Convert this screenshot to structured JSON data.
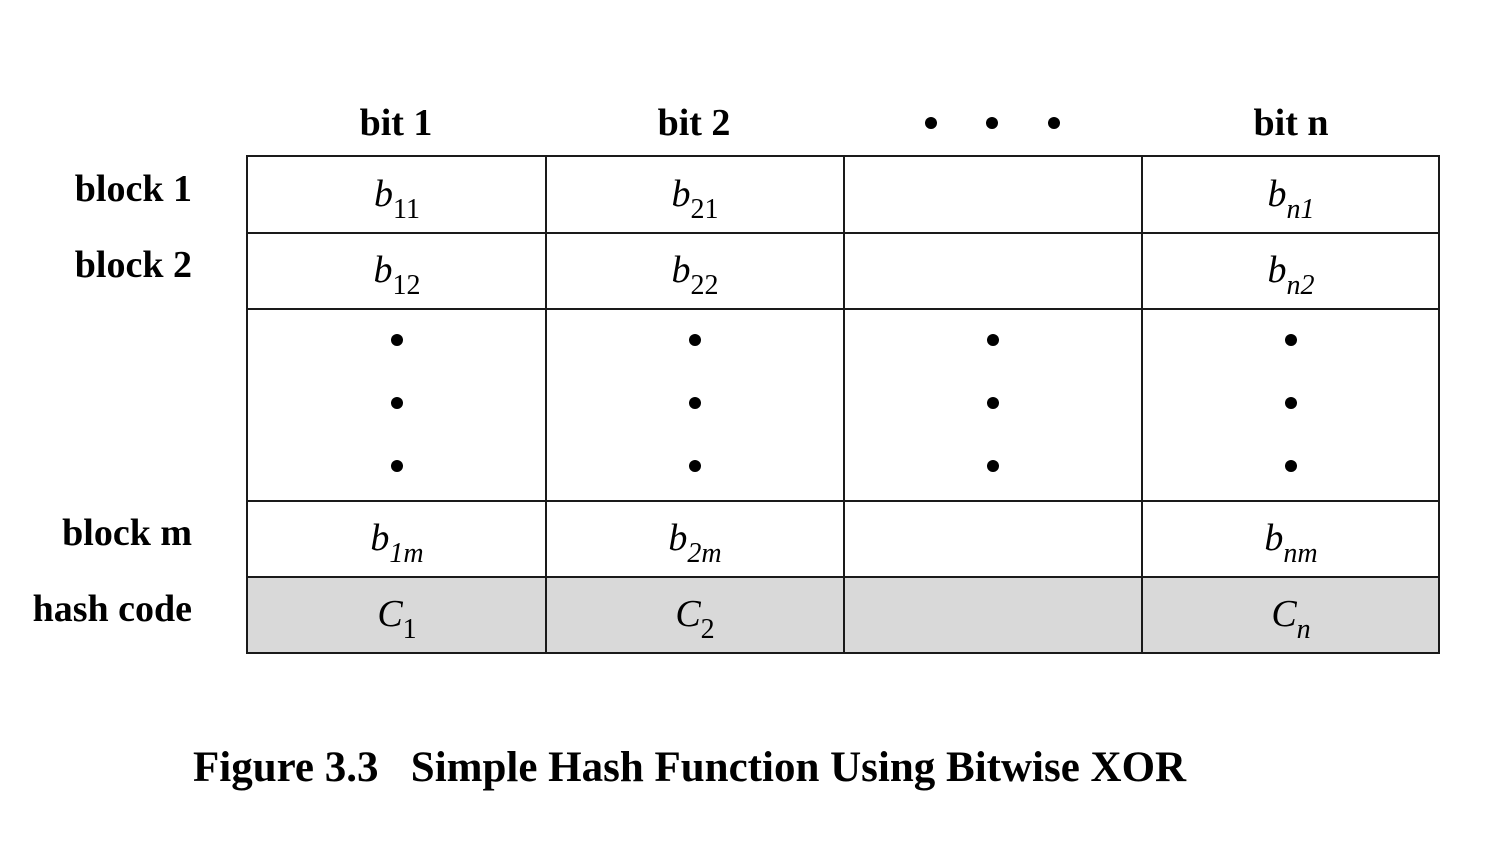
{
  "columns": [
    "bit 1",
    "bit 2",
    "",
    "bit n"
  ],
  "column_ellipsis": "• • •",
  "rows": {
    "block1": {
      "label": "block 1",
      "cells": [
        {
          "b": "b",
          "s": "11"
        },
        {
          "b": "b",
          "s": "21"
        },
        null,
        {
          "b": "b",
          "s": "n1"
        }
      ]
    },
    "block2": {
      "label": "block 2",
      "cells": [
        {
          "b": "b",
          "s": "12"
        },
        {
          "b": "b",
          "s": "22"
        },
        null,
        {
          "b": "b",
          "s": "n2"
        }
      ]
    },
    "blockm": {
      "label": "block m",
      "cells": [
        {
          "b": "b",
          "s": "1m"
        },
        {
          "b": "b",
          "s": "2m"
        },
        null,
        {
          "b": "b",
          "s": "nm"
        }
      ]
    },
    "hash": {
      "label": "hash code",
      "cells": [
        {
          "b": "C",
          "s": "1"
        },
        {
          "b": "C",
          "s": "2"
        },
        null,
        {
          "b": "C",
          "s": "n"
        }
      ]
    }
  },
  "caption": {
    "number": "Figure 3.3",
    "title": "Simple Hash Function Using Bitwise XOR"
  },
  "colors": {
    "grid_line": "#1a1a1a",
    "hash_fill": "#d9d9d9"
  }
}
